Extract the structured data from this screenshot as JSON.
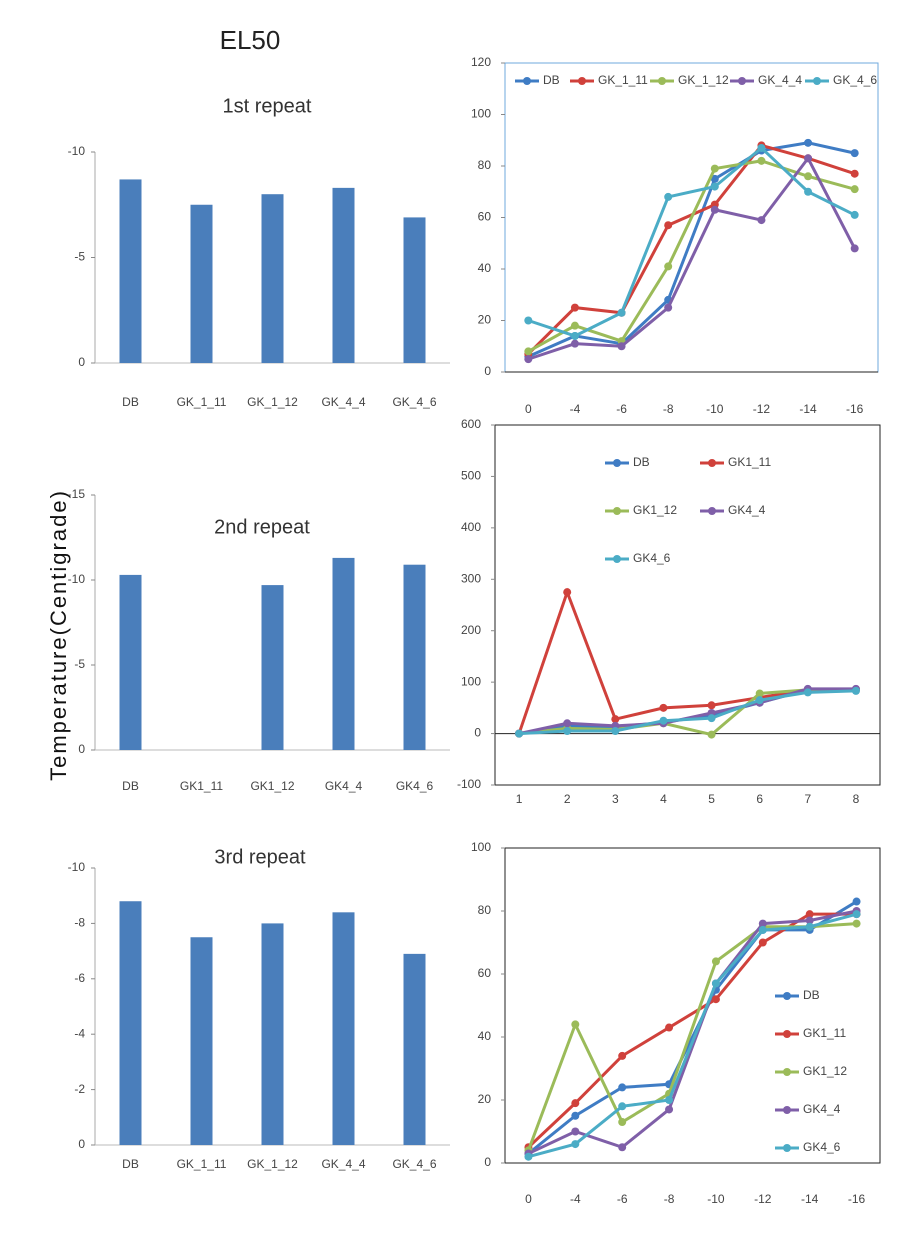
{
  "title": "EL50",
  "ylabel": "Temperature(Centigrade)",
  "chart_data": [
    {
      "type": "bar",
      "title": "1st repeat",
      "categories": [
        "DB",
        "GK_1_11",
        "GK_1_12",
        "GK_4_4",
        "GK_4_6"
      ],
      "values": [
        -8.7,
        -7.5,
        -8.0,
        -8.3,
        -6.9
      ],
      "color": "#4a7ebb",
      "ylim": [
        0,
        -10
      ],
      "yticks": [
        -10,
        -5,
        0
      ]
    },
    {
      "type": "bar",
      "title": "2nd repeat",
      "categories": [
        "DB",
        "GK1_11",
        "GK1_12",
        "GK4_4",
        "GK4_6"
      ],
      "values": [
        -10.3,
        null,
        -9.7,
        -11.3,
        -10.9
      ],
      "color": "#4a7ebb",
      "ylim": [
        0,
        -15
      ],
      "yticks": [
        -15,
        -10,
        -5,
        0
      ]
    },
    {
      "type": "bar",
      "title": "3rd repeat",
      "categories": [
        "DB",
        "GK_1_11",
        "GK_1_12",
        "GK_4_4",
        "GK_4_6"
      ],
      "values": [
        -8.8,
        -7.5,
        -8.0,
        -8.4,
        -6.9
      ],
      "color": "#4a7ebb",
      "ylim": [
        0,
        -10
      ],
      "yticks": [
        -10,
        -8,
        -6,
        -4,
        -2,
        0
      ]
    },
    {
      "type": "line",
      "legend": "top",
      "categories": [
        "0",
        "-4",
        "-6",
        "-8",
        "-10",
        "-12",
        "-14",
        "-16"
      ],
      "ylim": [
        0,
        120
      ],
      "yticks": [
        0,
        20,
        40,
        60,
        80,
        100,
        120
      ],
      "series": [
        {
          "name": "DB",
          "color": "#3f7cc4",
          "values": [
            6,
            14,
            11,
            28,
            75,
            86,
            89,
            85
          ]
        },
        {
          "name": "GK_1_11",
          "color": "#d0413b",
          "values": [
            7,
            25,
            23,
            57,
            65,
            88,
            83,
            77
          ]
        },
        {
          "name": "GK_1_12",
          "color": "#9bbb59",
          "values": [
            8,
            18,
            12,
            41,
            79,
            82,
            76,
            71
          ]
        },
        {
          "name": "GK_4_4",
          "color": "#7f5fa8",
          "values": [
            5,
            11,
            10,
            25,
            63,
            59,
            83,
            48
          ]
        },
        {
          "name": "GK_4_6",
          "color": "#4bacc6",
          "values": [
            20,
            14,
            23,
            68,
            72,
            87,
            70,
            61
          ]
        }
      ]
    },
    {
      "type": "line",
      "legend": "upper-grid",
      "categories": [
        "1",
        "2",
        "3",
        "4",
        "5",
        "6",
        "7",
        "8"
      ],
      "ylim": [
        -100,
        600
      ],
      "yticks": [
        -100,
        0,
        100,
        200,
        300,
        400,
        500,
        600
      ],
      "series": [
        {
          "name": "DB",
          "color": "#3f7cc4",
          "values": [
            0,
            15,
            12,
            22,
            35,
            60,
            85,
            85
          ]
        },
        {
          "name": "GK1_11",
          "color": "#d0413b",
          "values": [
            0,
            275,
            28,
            50,
            55,
            70,
            85,
            85
          ]
        },
        {
          "name": "GK1_12",
          "color": "#9bbb59",
          "values": [
            0,
            10,
            8,
            20,
            -2,
            78,
            85,
            85
          ]
        },
        {
          "name": "GK4_4",
          "color": "#7f5fa8",
          "values": [
            0,
            20,
            15,
            20,
            40,
            60,
            87,
            87
          ]
        },
        {
          "name": "GK4_6",
          "color": "#4bacc6",
          "values": [
            0,
            5,
            5,
            25,
            30,
            65,
            80,
            83
          ]
        }
      ]
    },
    {
      "type": "line",
      "legend": "right",
      "categories": [
        "0",
        "-4",
        "-6",
        "-8",
        "-10",
        "-12",
        "-14",
        "-16"
      ],
      "ylim": [
        0,
        100
      ],
      "yticks": [
        0,
        20,
        40,
        60,
        80,
        100
      ],
      "series": [
        {
          "name": "DB",
          "color": "#3f7cc4",
          "values": [
            3,
            15,
            24,
            25,
            55,
            74,
            74,
            83
          ]
        },
        {
          "name": "GK1_11",
          "color": "#d0413b",
          "values": [
            5,
            19,
            34,
            43,
            52,
            70,
            79,
            79
          ]
        },
        {
          "name": "GK1_12",
          "color": "#9bbb59",
          "values": [
            4,
            44,
            13,
            22,
            64,
            75,
            75,
            76
          ]
        },
        {
          "name": "GK4_4",
          "color": "#7f5fa8",
          "values": [
            3,
            10,
            5,
            17,
            57,
            76,
            77,
            80
          ]
        },
        {
          "name": "GK4_6",
          "color": "#4bacc6",
          "values": [
            2,
            6,
            18,
            20,
            57,
            74,
            75,
            79
          ]
        }
      ]
    }
  ]
}
